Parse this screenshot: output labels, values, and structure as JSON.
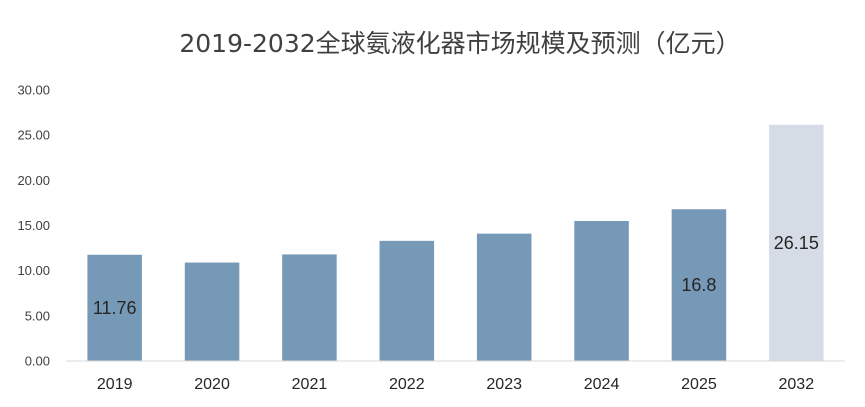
{
  "chart_data": {
    "type": "bar",
    "title": "2019-2032全球氨液化器市场规模及预测（亿元）",
    "xlabel": "",
    "ylabel": "",
    "categories": [
      "2019",
      "2020",
      "2021",
      "2022",
      "2023",
      "2024",
      "2025",
      "2032"
    ],
    "values": [
      11.76,
      10.9,
      11.8,
      13.3,
      14.1,
      15.5,
      16.8,
      26.15
    ],
    "data_labels": [
      {
        "index": 0,
        "text": "11.76"
      },
      {
        "index": 6,
        "text": "16.8"
      },
      {
        "index": 7,
        "text": "26.15"
      }
    ],
    "yticks": [
      "0.00",
      "5.00",
      "10.00",
      "15.00",
      "20.00",
      "25.00",
      "30.00"
    ],
    "ylim": [
      0,
      30
    ],
    "grid": false,
    "legend": "none",
    "colors": {
      "actual": "#7799b8",
      "forecast": "#d6dce6",
      "forecast_indices": [
        7
      ]
    }
  }
}
